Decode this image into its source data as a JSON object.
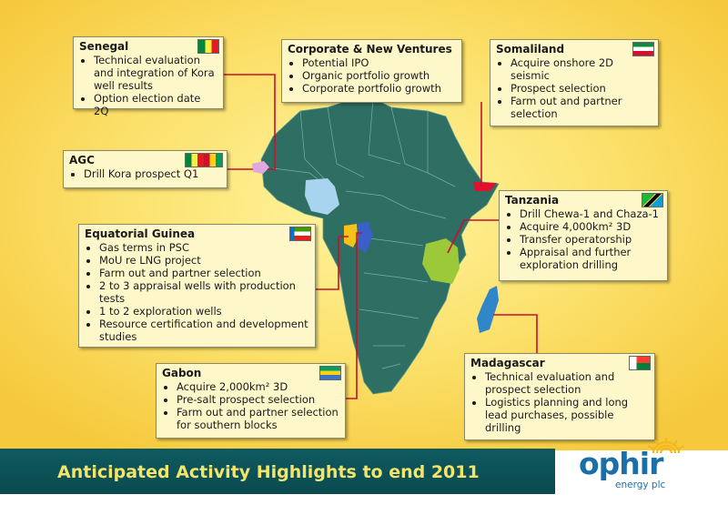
{
  "slide_title": "Anticipated Activity Highlights to end 2011",
  "logo": {
    "word": "ophir",
    "sub": "energy plc"
  },
  "boxes": {
    "senegal": {
      "title": "Senegal",
      "items": [
        "Technical evaluation and integration of Kora well results",
        "Option election date 2Q"
      ]
    },
    "corporate": {
      "title": "Corporate & New Ventures",
      "items": [
        "Potential IPO",
        "Organic portfolio growth",
        "Corporate portfolio growth"
      ]
    },
    "somaliland": {
      "title": "Somaliland",
      "items": [
        "Acquire onshore 2D seismic",
        "Prospect selection",
        "Farm out and partner selection"
      ]
    },
    "agc": {
      "title": "AGC",
      "items": [
        "Drill Kora prospect Q1"
      ]
    },
    "tanzania": {
      "title": "Tanzania",
      "items": [
        "Drill Chewa-1 and Chaza-1",
        "Acquire 4,000km² 3D",
        "Transfer operatorship",
        "Appraisal and further exploration drilling"
      ]
    },
    "eq_guinea": {
      "title": "Equatorial Guinea",
      "items": [
        "Gas terms in PSC",
        "MoU re LNG project",
        "Farm out and partner selection",
        "2 to 3 appraisal wells with production tests",
        "1 to 2 exploration wells",
        "Resource certification and development studies"
      ]
    },
    "gabon": {
      "title": "Gabon",
      "items": [
        "Acquire 2,000km² 3D",
        "Pre-salt prospect selection",
        "Farm out and partner selection for southern blocks"
      ]
    },
    "madagascar": {
      "title": "Madagascar",
      "items": [
        "Technical evaluation and prospect selection",
        "Logistics planning and long lead purchases, possible drilling"
      ]
    }
  },
  "colors": {
    "africa": "#2f6e62",
    "connector": "#c8102e",
    "band": "#0e5a60",
    "title": "#f3e46a",
    "box_bg": "#fdf7c9",
    "logo": "#1a6fa8",
    "tanzania": "#9cc93a",
    "nigeria": "#a9d4ef",
    "agc": "#e0a8e0",
    "somaliland": "#e0102e",
    "madagascar": "#2f86c8",
    "eq_guinea": "#f6c21a",
    "gabon": "#3b5fc8"
  }
}
